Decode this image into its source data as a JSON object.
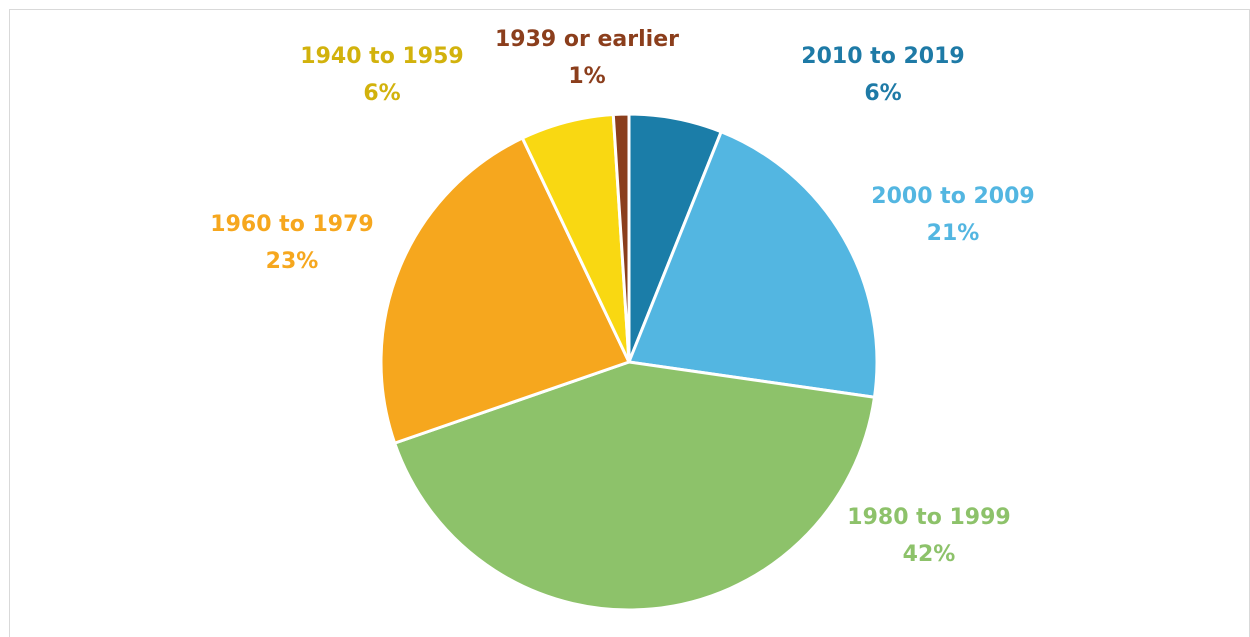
{
  "chart_data": {
    "type": "pie",
    "categories": [
      "2010 to 2019",
      "2000 to 2009",
      "1980 to 1999",
      "1960 to 1979",
      "1940 to 1959",
      "1939 or earlier"
    ],
    "values": [
      6,
      21,
      42,
      23,
      6,
      1
    ],
    "value_labels": [
      "6%",
      "21%",
      "42%",
      "23%",
      "6%",
      "1%"
    ],
    "colors": [
      "#1b7da8",
      "#53b6e1",
      "#8dc26a",
      "#f6a71e",
      "#f9d812",
      "#8b3e1c"
    ],
    "label_colors": [
      "#1e7aa6",
      "#53b6e1",
      "#8dc26a",
      "#f6a71e",
      "#d2b20c",
      "#8b3e1c"
    ]
  }
}
